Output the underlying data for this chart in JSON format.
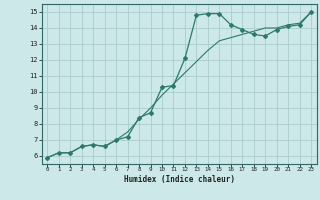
{
  "xlabel": "Humidex (Indice chaleur)",
  "bg_color": "#cce8e8",
  "grid_color": "#aacccc",
  "line_color": "#2d7a6a",
  "spine_color": "#336666",
  "xlim": [
    -0.5,
    23.5
  ],
  "ylim": [
    5.5,
    15.5
  ],
  "xticks": [
    0,
    1,
    2,
    3,
    4,
    5,
    6,
    7,
    8,
    9,
    10,
    11,
    12,
    13,
    14,
    15,
    16,
    17,
    18,
    19,
    20,
    21,
    22,
    23
  ],
  "yticks": [
    6,
    7,
    8,
    9,
    10,
    11,
    12,
    13,
    14,
    15
  ],
  "line1_x": [
    0,
    1,
    2,
    3,
    4,
    5,
    6,
    7,
    8,
    9,
    10,
    11,
    12,
    13,
    14,
    15,
    16,
    17,
    18,
    19,
    20,
    21,
    22,
    23
  ],
  "line1_y": [
    5.9,
    6.2,
    6.2,
    6.6,
    6.7,
    6.6,
    7.0,
    7.2,
    8.4,
    8.7,
    10.3,
    10.4,
    12.1,
    14.8,
    14.9,
    14.9,
    14.2,
    13.9,
    13.6,
    13.5,
    13.9,
    14.1,
    14.2,
    15.0
  ],
  "line2_x": [
    0,
    1,
    2,
    3,
    4,
    5,
    6,
    7,
    8,
    9,
    10,
    11,
    12,
    13,
    14,
    15,
    16,
    17,
    18,
    19,
    20,
    21,
    22,
    23
  ],
  "line2_y": [
    5.9,
    6.2,
    6.2,
    6.6,
    6.7,
    6.6,
    7.0,
    7.5,
    8.3,
    9.0,
    9.8,
    10.5,
    11.2,
    11.9,
    12.6,
    13.2,
    13.4,
    13.6,
    13.8,
    14.0,
    14.0,
    14.2,
    14.3,
    15.0
  ]
}
